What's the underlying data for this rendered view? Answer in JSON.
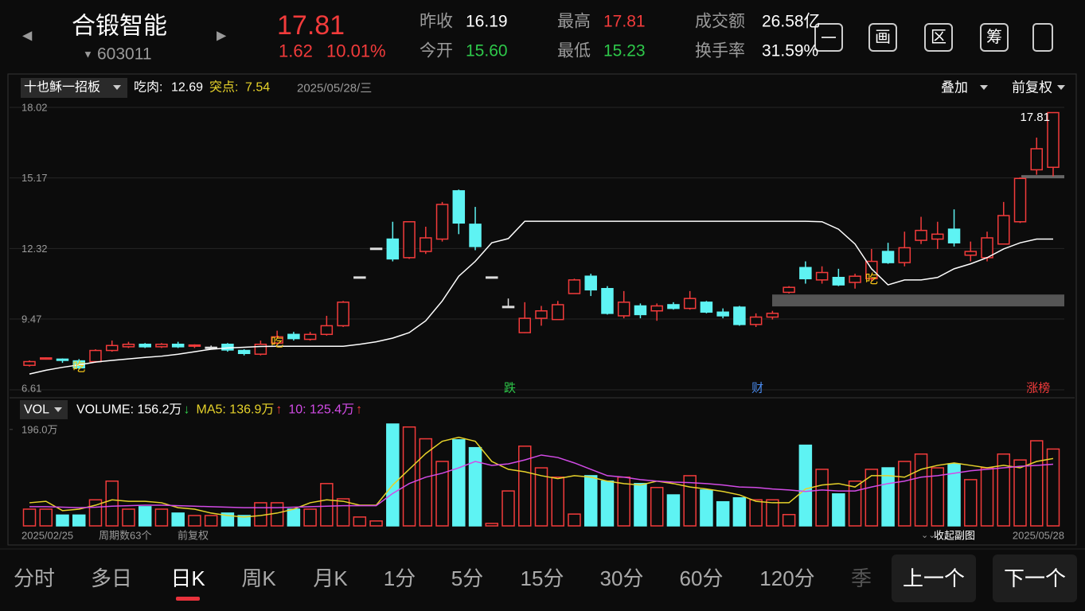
{
  "header": {
    "prev": "◀",
    "next": "▶",
    "name": "合锻智能",
    "code_arrow": "▼",
    "code": "603011",
    "price": "17.81",
    "change": "1.62",
    "change_pct": "10.01%",
    "price_color": "#f23b3b",
    "stats": [
      {
        "label": "昨收",
        "value": "16.19",
        "color": "#ffffff"
      },
      {
        "label": "今开",
        "value": "15.60",
        "color": "#2ec84a"
      },
      {
        "label": "最高",
        "value": "17.81",
        "color": "#f23b3b"
      },
      {
        "label": "最低",
        "value": "15.23",
        "color": "#2ec84a"
      },
      {
        "label": "成交额",
        "value": "26.58亿",
        "color": "#ffffff"
      },
      {
        "label": "换手率",
        "value": "31.59%",
        "color": "#ffffff"
      }
    ],
    "tools": [
      "画",
      "区",
      "筹"
    ]
  },
  "chart_header": {
    "indicator": "十也稣一招板",
    "eat_label": "吃肉:",
    "eat_value": "12.69",
    "break_label": "突点:",
    "break_value": "7.54",
    "date": "2025/05/28/三",
    "overlay": "叠加",
    "adjust": "前复权"
  },
  "chart_data": [
    {
      "type": "candlestick",
      "categories": [
        "2025/02/25",
        null,
        null,
        null,
        null,
        null,
        null,
        null,
        null,
        null,
        null,
        null,
        null,
        null,
        null,
        null,
        null,
        null,
        null,
        null,
        null,
        null,
        null,
        null,
        null,
        null,
        null,
        null,
        null,
        null,
        null,
        null,
        null,
        null,
        null,
        null,
        null,
        null,
        null,
        null,
        null,
        null,
        null,
        null,
        null,
        null,
        null,
        null,
        null,
        null,
        null,
        null,
        null,
        null,
        null,
        null,
        null,
        null,
        null,
        null,
        null,
        null,
        "2025/05/28"
      ],
      "open": [
        7.6,
        7.85,
        7.85,
        7.78,
        7.75,
        8.2,
        8.35,
        8.45,
        8.35,
        8.45,
        8.38,
        8.33,
        8.45,
        8.2,
        8.05,
        8.5,
        8.85,
        8.65,
        8.85,
        9.2,
        11.17,
        12.33,
        12.7,
        11.95,
        12.2,
        12.7,
        14.65,
        13.3,
        11.17,
        9.98,
        8.92,
        9.5,
        9.45,
        10.5,
        11.2,
        10.7,
        9.6,
        10.0,
        9.8,
        10.05,
        9.9,
        10.15,
        9.75,
        9.95,
        9.25,
        9.55,
        10.55,
        11.55,
        11.05,
        11.15,
        10.95,
        11.1,
        12.2,
        11.75,
        12.65,
        12.7,
        13.1,
        12.05,
        11.95,
        12.5,
        13.4,
        15.5,
        15.6
      ],
      "high": [
        7.8,
        7.92,
        7.88,
        7.85,
        8.25,
        8.6,
        8.55,
        8.5,
        8.5,
        8.55,
        8.45,
        8.4,
        8.5,
        8.25,
        8.6,
        9.0,
        8.95,
        8.95,
        9.6,
        10.2,
        11.17,
        12.33,
        13.4,
        13.4,
        13.2,
        14.2,
        14.7,
        14.0,
        11.17,
        10.3,
        10.15,
        10.0,
        10.2,
        11.1,
        11.3,
        10.8,
        10.6,
        10.1,
        10.1,
        10.15,
        10.6,
        10.2,
        9.9,
        10.0,
        9.7,
        9.8,
        10.8,
        11.8,
        11.6,
        11.5,
        11.3,
        12.3,
        12.55,
        13.0,
        13.6,
        13.4,
        13.9,
        12.6,
        13.0,
        14.2,
        15.2,
        16.8,
        17.81
      ],
      "low": [
        7.55,
        7.83,
        7.7,
        7.45,
        7.7,
        8.15,
        8.3,
        8.3,
        8.3,
        8.3,
        8.3,
        8.3,
        8.15,
        8.0,
        8.0,
        8.45,
        8.6,
        8.6,
        8.8,
        9.15,
        11.17,
        12.33,
        11.8,
        11.9,
        12.1,
        12.6,
        12.9,
        12.25,
        11.17,
        9.98,
        8.9,
        9.2,
        9.45,
        10.5,
        10.4,
        9.65,
        9.5,
        9.5,
        9.4,
        9.85,
        9.85,
        9.7,
        9.5,
        9.2,
        9.15,
        9.45,
        10.5,
        10.9,
        10.9,
        10.8,
        10.7,
        11.0,
        11.7,
        11.6,
        12.5,
        12.3,
        12.4,
        11.8,
        11.8,
        12.5,
        13.35,
        15.3,
        15.23
      ],
      "close": [
        7.75,
        7.9,
        7.8,
        7.5,
        8.2,
        8.4,
        8.45,
        8.35,
        8.45,
        8.35,
        8.42,
        8.33,
        8.22,
        8.08,
        8.45,
        8.75,
        8.68,
        8.85,
        9.2,
        10.15,
        11.17,
        12.33,
        11.9,
        13.4,
        12.75,
        14.1,
        13.35,
        12.4,
        11.17,
        9.98,
        9.5,
        9.8,
        10.05,
        11.05,
        10.65,
        9.7,
        10.15,
        9.65,
        10.0,
        9.9,
        10.3,
        9.75,
        9.6,
        9.25,
        9.55,
        9.7,
        10.75,
        11.1,
        11.35,
        10.85,
        11.2,
        11.8,
        11.75,
        12.35,
        13.05,
        12.9,
        12.55,
        12.2,
        12.75,
        13.65,
        15.15,
        16.35,
        17.81
      ],
      "ma_line": {
        "color": "#ffffff",
        "values": [
          7.25,
          7.4,
          7.52,
          7.62,
          7.73,
          7.8,
          7.86,
          7.92,
          7.97,
          8.05,
          8.15,
          8.25,
          8.3,
          8.33,
          8.36,
          8.37,
          8.37,
          8.37,
          8.37,
          8.37,
          8.45,
          8.55,
          8.7,
          8.92,
          9.4,
          10.2,
          11.2,
          11.8,
          12.55,
          12.72,
          13.42,
          13.42,
          13.42,
          13.42,
          13.42,
          13.42,
          13.42,
          13.42,
          13.42,
          13.42,
          13.42,
          13.42,
          13.42,
          13.42,
          13.42,
          13.42,
          13.42,
          13.42,
          13.4,
          13.1,
          12.5,
          11.5,
          10.85,
          11.05,
          11.05,
          11.15,
          11.5,
          11.7,
          11.95,
          12.3,
          12.55,
          12.7,
          12.7
        ]
      },
      "band": [
        9.98,
        10.46
      ],
      "level": 15.22,
      "max_label": "17.81",
      "signals": [
        null,
        null,
        null,
        "吃",
        null,
        null,
        null,
        null,
        null,
        null,
        null,
        null,
        null,
        null,
        null,
        "吃",
        null,
        null,
        null,
        null,
        null,
        null,
        null,
        null,
        null,
        null,
        null,
        null,
        null,
        null,
        null,
        null,
        null,
        null,
        null,
        null,
        null,
        null,
        null,
        null,
        null,
        null,
        null,
        null,
        null,
        null,
        null,
        null,
        null,
        null,
        null,
        "吃",
        null,
        null,
        null,
        null,
        null,
        null,
        null,
        null,
        null,
        null,
        null
      ],
      "tags": [
        null,
        null,
        null,
        null,
        null,
        null,
        null,
        null,
        null,
        null,
        null,
        null,
        null,
        null,
        null,
        null,
        null,
        null,
        null,
        null,
        null,
        null,
        null,
        null,
        null,
        null,
        null,
        null,
        null,
        {
          "text": "跌",
          "color": "#2ec84a"
        },
        null,
        null,
        null,
        null,
        null,
        null,
        null,
        null,
        null,
        null,
        null,
        null,
        null,
        null,
        {
          "text": "财",
          "color": "#4a8cf0"
        },
        null,
        null,
        null,
        null,
        null,
        null,
        null,
        null,
        null,
        null,
        null,
        null,
        null,
        null,
        null,
        null,
        {
          "text": "涨榜",
          "color": "#f23b3b"
        },
        null
      ],
      "ylim": [
        6.61,
        18.02
      ],
      "yticks": [
        18.02,
        15.17,
        12.32,
        9.47,
        6.61
      ],
      "grid": true,
      "up_color": "#f23b3b",
      "down_color": "#5ef3f3",
      "flat_color": "#dddddd"
    },
    {
      "type": "bar",
      "indicator": "VOL",
      "title": "VOLUME: 156.2万",
      "title_arrow": "↓",
      "values": [
        34,
        34,
        22,
        22,
        53,
        91,
        34,
        39,
        34,
        26,
        21,
        21,
        26,
        21,
        47,
        47,
        34,
        34,
        86,
        55,
        18,
        10,
        207,
        201,
        177,
        131,
        175,
        159,
        5,
        71,
        162,
        118,
        99,
        24,
        102,
        91,
        99,
        86,
        78,
        63,
        102,
        73,
        49,
        57,
        53,
        53,
        23,
        164,
        115,
        65,
        91,
        115,
        118,
        131,
        146,
        118,
        126,
        94,
        118,
        146,
        134,
        173,
        156.2
      ],
      "series": [
        {
          "name": "MA5: 136.9万",
          "arrow": "↑",
          "color": "#e6d22a",
          "values": [
            47,
            50,
            31,
            34,
            42,
            53,
            50,
            50,
            47,
            37,
            34,
            26,
            21,
            18,
            21,
            26,
            34,
            47,
            53,
            50,
            42,
            42,
            83,
            115,
            147,
            172,
            180,
            172,
            131,
            115,
            110,
            102,
            96,
            102,
            99,
            91,
            86,
            83,
            91,
            86,
            79,
            75,
            70,
            63,
            50,
            47,
            47,
            75,
            83,
            86,
            79,
            102,
            102,
            99,
            115,
            123,
            128,
            123,
            118,
            123,
            118,
            131,
            136.9
          ]
        },
        {
          "name": "10: 125.4万",
          "arrow": "↑",
          "color": "#d24be6",
          "values": [
            39,
            39,
            38,
            37,
            38,
            40,
            41,
            42,
            42,
            41,
            40,
            39,
            38,
            37,
            37,
            37,
            38,
            39,
            40,
            41,
            41,
            41,
            66,
            86,
            99,
            107,
            118,
            131,
            123,
            126,
            134,
            144,
            139,
            128,
            115,
            102,
            99,
            94,
            91,
            89,
            88,
            86,
            83,
            79,
            78,
            75,
            73,
            70,
            73,
            71,
            71,
            79,
            86,
            91,
            99,
            102,
            107,
            112,
            115,
            118,
            121,
            123,
            125.4
          ]
        }
      ],
      "ylim": [
        0,
        207
      ],
      "yticks": [
        {
          "value": 196,
          "label": "196.0万"
        }
      ]
    }
  ],
  "footer": {
    "period": "周期数63个",
    "adjust": "前复权",
    "collapse_icon": "⌄⌄",
    "collapse": "收起副图"
  },
  "tabs": {
    "items": [
      "分时",
      "多日",
      "日K",
      "周K",
      "月K",
      "1分",
      "5分",
      "15分",
      "30分",
      "60分",
      "120分",
      "季"
    ],
    "active": "日K",
    "prev": "上一个",
    "next": "下一个"
  }
}
